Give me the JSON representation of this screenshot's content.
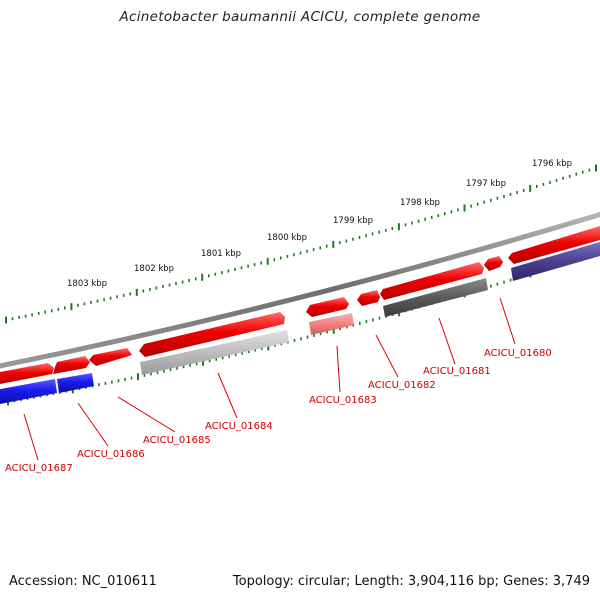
{
  "title": "Acinetobacter baumannii ACICU, complete genome",
  "footer": {
    "accession": "Accession: NC_010611",
    "topology": "Topology: circular; Length: 3,904,116 bp; Genes: 3,749"
  },
  "colors": {
    "backbone": "#7a7a7a",
    "tick": "#1f7a1f",
    "forward_gene": "#ee0000",
    "gene_label": "#cc0000",
    "cog_blue": "#1a1aee",
    "cog_gray_light": "#bdbdbd",
    "cog_gray_dark": "#5a5a5a",
    "cog_pink": "#f08080",
    "cog_purple": "#4b3f8f"
  },
  "scale": {
    "unit": "kbp",
    "labels": [
      "1803 kbp",
      "1802 kbp",
      "1801 kbp",
      "1800 kbp",
      "1799 kbp",
      "1798 kbp",
      "1797 kbp",
      "1796 kbp"
    ]
  },
  "genes": [
    {
      "id": "ACICU_01680",
      "label": "ACICU_01680"
    },
    {
      "id": "ACICU_01681",
      "label": "ACICU_01681"
    },
    {
      "id": "ACICU_01682",
      "label": "ACICU_01682"
    },
    {
      "id": "ACICU_01683",
      "label": "ACICU_01683"
    },
    {
      "id": "ACICU_01684",
      "label": "ACICU_01684"
    },
    {
      "id": "ACICU_01685",
      "label": "ACICU_01685"
    },
    {
      "id": "ACICU_01686",
      "label": "ACICU_01686"
    },
    {
      "id": "ACICU_01687",
      "label": "ACICU_01687"
    }
  ]
}
